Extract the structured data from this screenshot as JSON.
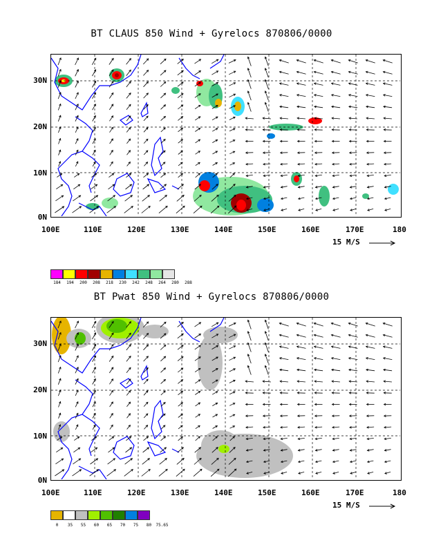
{
  "panels": [
    {
      "title": "BT CLAUS 850 Wind + Gyrelocs 870806/0000",
      "xticks": [
        "100E",
        "110E",
        "120E",
        "130E",
        "140E",
        "150E",
        "160E",
        "170E",
        "180"
      ],
      "yticks": [
        "30N",
        "20N",
        "10N",
        "0N"
      ],
      "scale_label": "15 M/S",
      "legend": {
        "values": [
          "184",
          "194",
          "200",
          "208",
          "218",
          "230",
          "242",
          "248",
          "264",
          "280",
          "288"
        ],
        "colors": [
          "#ff00ff",
          "#ffff00",
          "#ff0000",
          "#a00000",
          "#e6b400",
          "#0080e0",
          "#40e0ff",
          "#40c080",
          "#90e8a0",
          "#e6e6e6"
        ]
      }
    },
    {
      "title": "BT Pwat 850 Wind + Gyrelocs 870806/0000",
      "xticks": [
        "100E",
        "110E",
        "120E",
        "130E",
        "140E",
        "150E",
        "160E",
        "170E",
        "180"
      ],
      "yticks": [
        "30N",
        "20N",
        "10N",
        "0N"
      ],
      "scale_label": "15 M/S",
      "legend": {
        "values": [
          "0",
          "35",
          "55",
          "60",
          "65",
          "70",
          "75",
          "80",
          "75.65"
        ],
        "colors": [
          "#e6b400",
          "#ffffff",
          "#c0c0c0",
          "#a0f000",
          "#50c000",
          "#208000",
          "#0080e0",
          "#8000c0"
        ]
      }
    }
  ],
  "colors": {
    "coast": "#0000ff",
    "grid": "#000000",
    "arrow": "#000000"
  }
}
